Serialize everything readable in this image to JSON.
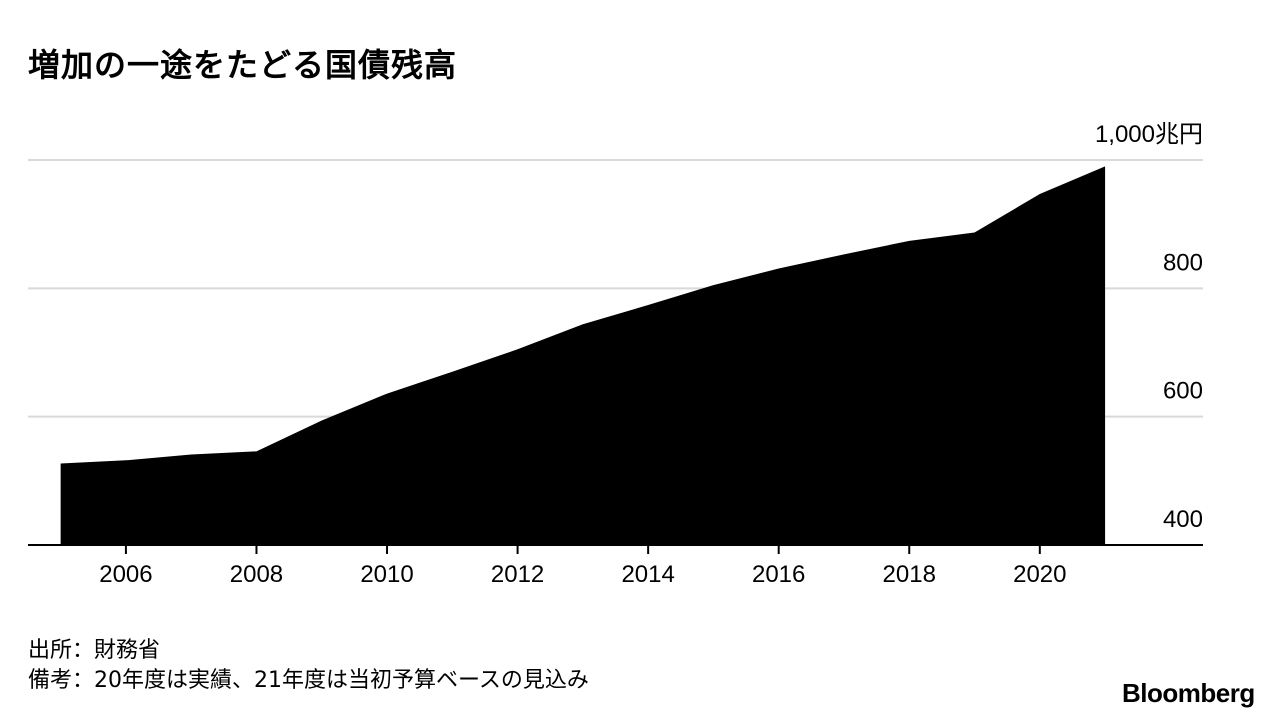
{
  "title": "増加の一途をたどる国債残高",
  "footer": {
    "source": "出所：財務省",
    "note": "備考：20年度は実績、21年度は当初予算ベースの見込み"
  },
  "brand": "Bloomberg",
  "colors": {
    "area": "#000000",
    "grid": "#d9d9d9",
    "axis": "#000000",
    "text": "#000000"
  },
  "chart_data": {
    "type": "area",
    "title": "増加の一途をたどる国債残高",
    "x": [
      2005,
      2006,
      2007,
      2008,
      2009,
      2010,
      2011,
      2012,
      2013,
      2014,
      2015,
      2016,
      2017,
      2018,
      2019,
      2020,
      2021
    ],
    "series": [
      {
        "values": [
          527,
          532,
          541,
          546,
          594,
          636,
          670,
          705,
          744,
          774,
          805,
          831,
          853,
          874,
          887,
          947,
          990
        ]
      }
    ],
    "xticks": [
      "2006",
      "2008",
      "2010",
      "2012",
      "2014",
      "2016",
      "2018",
      "2020"
    ],
    "yticks": [
      "1,000兆円",
      "800",
      "600",
      "400"
    ],
    "ylim": [
      400,
      1000
    ],
    "xlim": [
      2004.5,
      2022.5
    ],
    "grid": true,
    "y_axis_position": "right"
  }
}
